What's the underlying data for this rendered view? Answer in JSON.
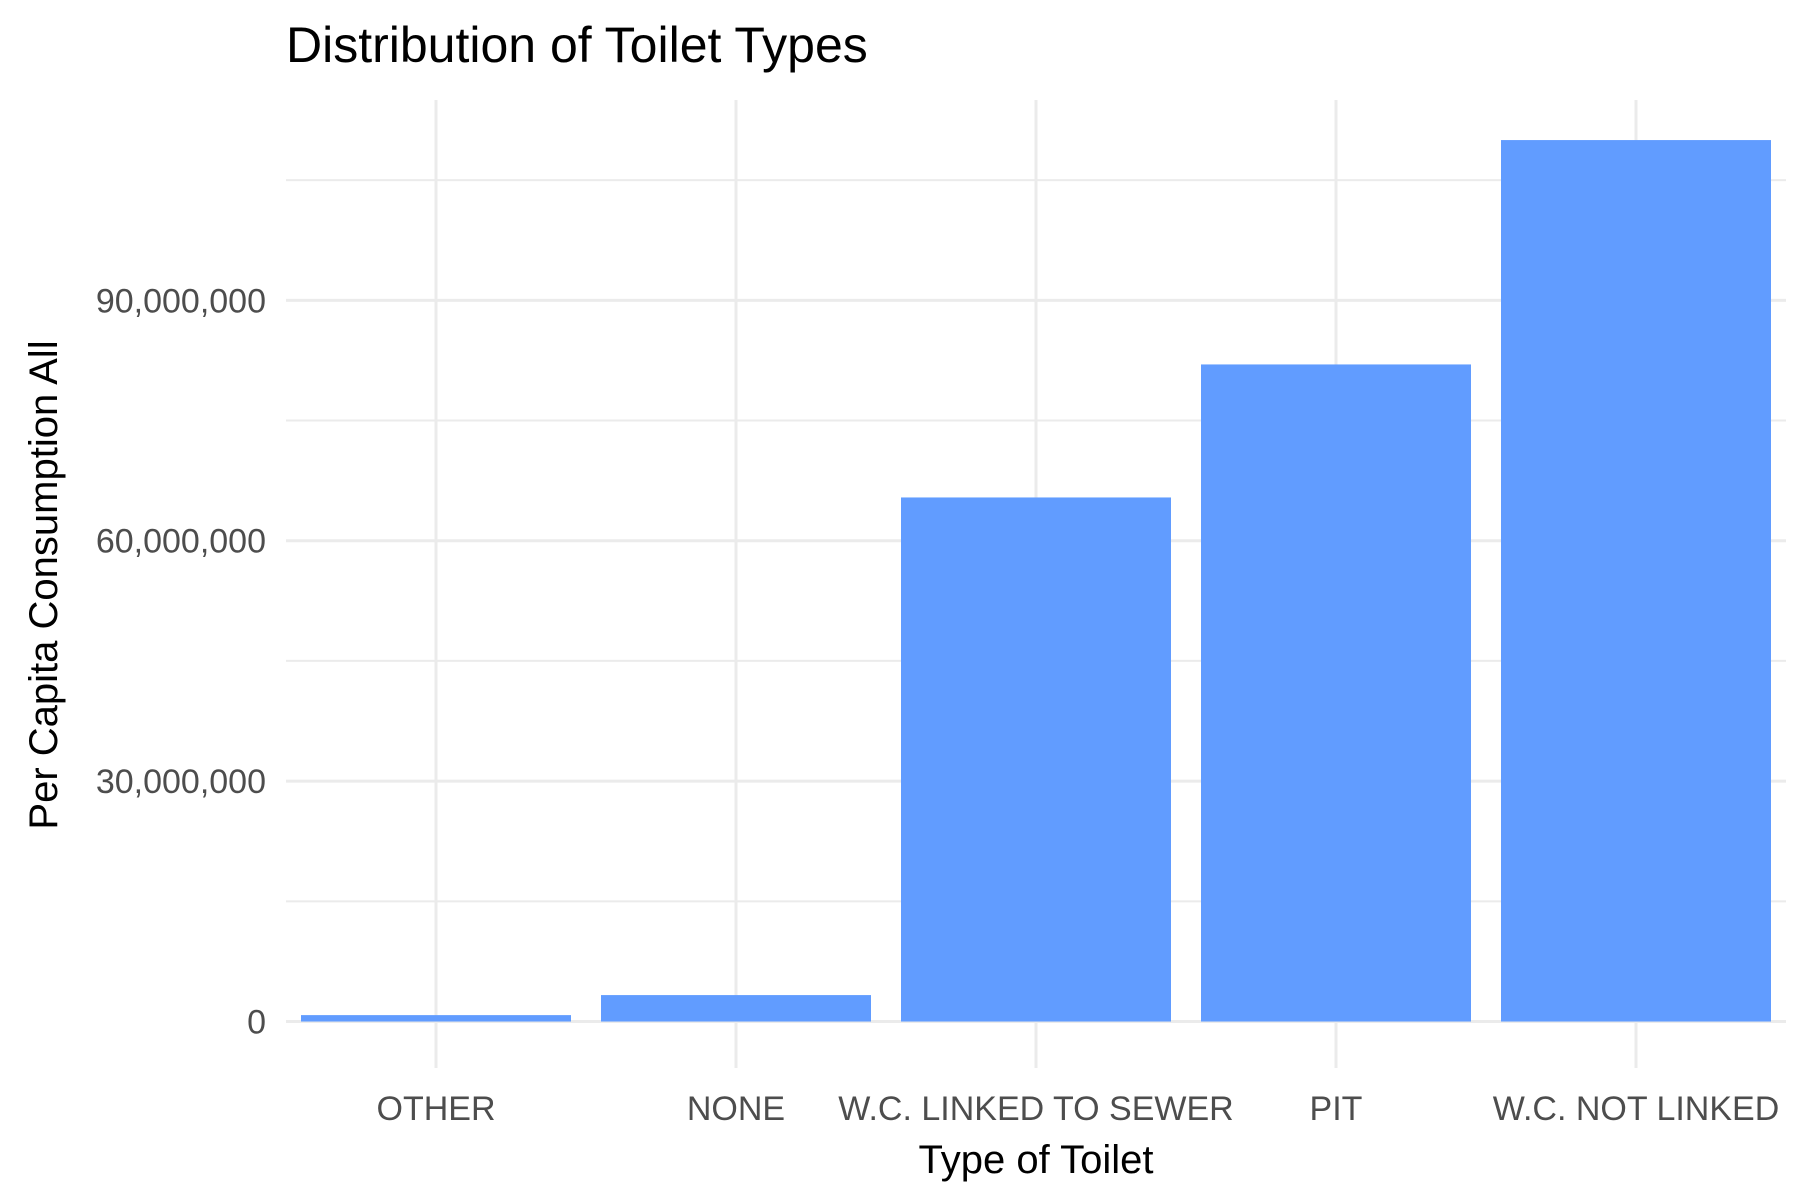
{
  "chart_data": {
    "type": "bar",
    "title": "Distribution of Toilet Types",
    "xlabel": "Type of Toilet",
    "ylabel": "Per Capita Consumption All",
    "categories": [
      "OTHER",
      "NONE",
      "W.C. LINKED TO SEWER",
      "PIT",
      "W.C. NOT LINKED"
    ],
    "values": [
      800000,
      3300000,
      65400000,
      82000000,
      110000000
    ],
    "ylim": [
      -5800000,
      115000000
    ],
    "y_ticks": [
      0,
      30000000,
      60000000,
      90000000
    ],
    "y_tick_labels": [
      "0",
      "30,000,000",
      "60,000,000",
      "90,000,000"
    ],
    "bar_color": "#619cff",
    "grid": true,
    "legend": "none"
  }
}
